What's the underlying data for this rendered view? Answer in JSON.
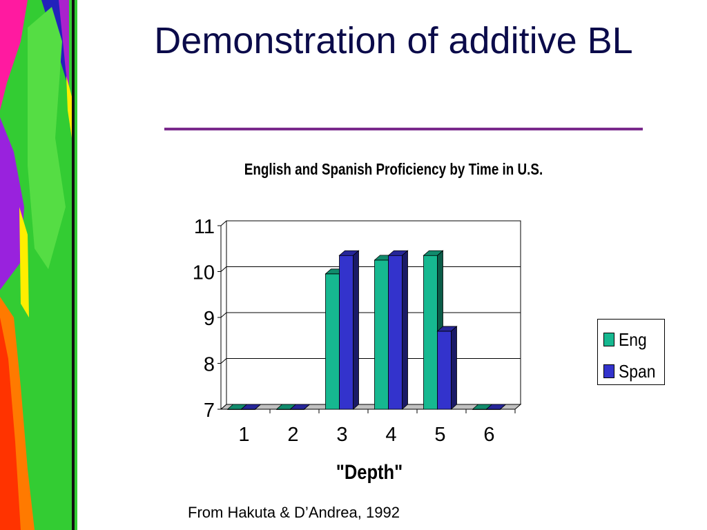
{
  "slide": {
    "title": "Demonstration of additive BL",
    "source": "From Hakuta & D’Andrea, 1992"
  },
  "chart_data": {
    "type": "bar",
    "title": "English and Spanish Proficiency by Time in U.S.",
    "xlabel": "\"Depth\"",
    "ylabel": "",
    "categories": [
      "1",
      "2",
      "3",
      "4",
      "5",
      "6"
    ],
    "ylim": [
      7,
      11
    ],
    "yticks": [
      "7",
      "8",
      "9",
      "10",
      "11"
    ],
    "grid": true,
    "legend_position": "right",
    "series": [
      {
        "name": "Eng",
        "color": "#16b890",
        "values": [
          7,
          7,
          9.95,
          10.25,
          10.35,
          7
        ]
      },
      {
        "name": "Span",
        "color": "#3333cc",
        "values": [
          7,
          7,
          10.35,
          10.35,
          8.7,
          7
        ]
      }
    ]
  }
}
